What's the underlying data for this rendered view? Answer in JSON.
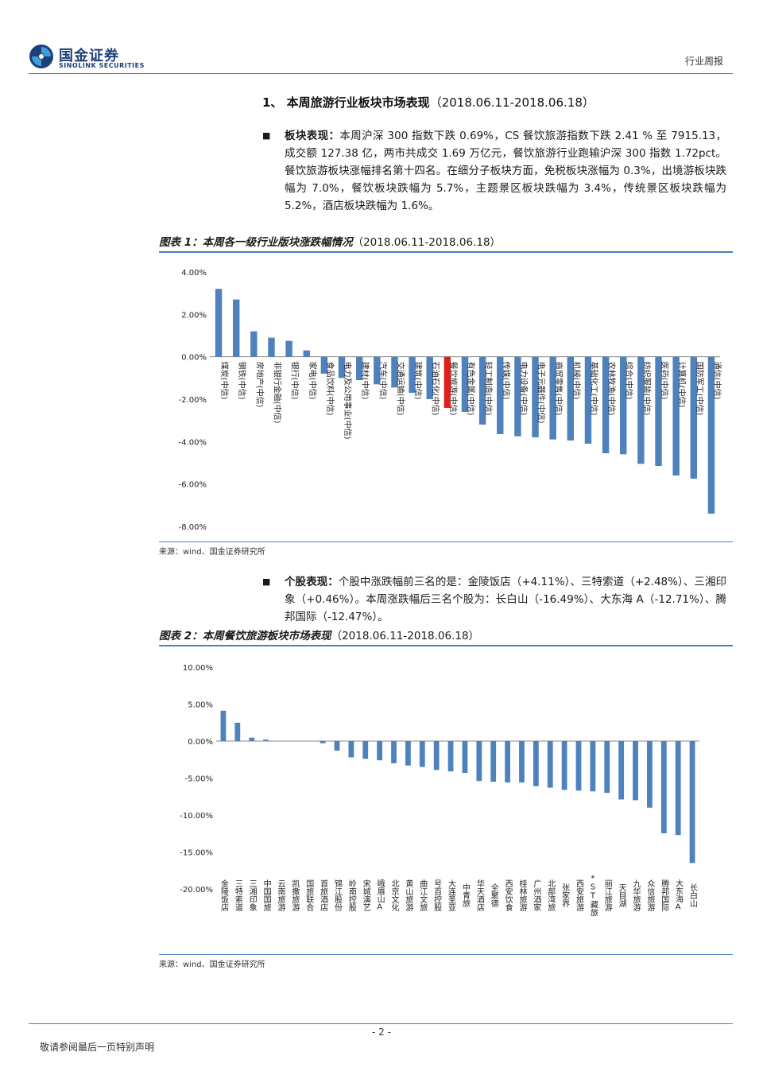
{
  "header": {
    "logo_cn": "国金证券",
    "logo_en": "SINOLINK SECURITIES",
    "report_type": "行业周报"
  },
  "section": {
    "number": "1、",
    "title": "本周旅游行业板块市场表现",
    "dates": "（2018.06.11-2018.06.18）"
  },
  "para1": {
    "label": "板块表现：",
    "text": "本周沪深 300 指数下跌 0.69%，CS 餐饮旅游指数下跌 2.41 % 至 7915.13，成交额 127.38 亿，两市共成交 1.69 万亿元，餐饮旅游行业跑输沪深 300 指数 1.72pct。餐饮旅游板块涨幅排名第十四名。在细分子板块方面，免税板块涨幅为 0.3%，出境游板块跌幅为 7.0%，餐饮板块跌幅为 5.7%，主题景区板块跌幅为 3.4%，传统景区板块跌幅为 5.2%，酒店板块跌幅为 1.6%。"
  },
  "fig1": {
    "title": "图表 1：本周各一级行业版块涨跌幅情况",
    "dates": "（2018.06.11-2018.06.18）",
    "source": "来源：wind、国金证券研究所"
  },
  "para2": {
    "label": "个股表现：",
    "text": "个股中涨跌幅前三名的是：金陵饭店（+4.11%）、三特索道（+2.48%）、三湘印象（+0.46%）。本周涨跌幅后三名个股为：长白山（-16.49%）、大东海 A（-12.71%）、腾邦国际（-12.47%）。"
  },
  "fig2": {
    "title": "图表 2：本周餐饮旅游板块市场表现",
    "dates": "（2018.06.11-2018.06.18）",
    "source": "来源：wind、国金证券研究所"
  },
  "footer": {
    "page": "- 2 -",
    "notice": "敬请参阅最后一页特别声明"
  },
  "colors": {
    "bar": "#4f81bd",
    "highlight": "#e0201b",
    "rule": "#4a7fc1",
    "brand": "#1d3f7a"
  },
  "chart_data": [
    {
      "type": "bar",
      "ylim": [
        -8,
        4
      ],
      "yticks": [
        "4.00%",
        "2.00%",
        "0.00%",
        "-2.00%",
        "-4.00%",
        "-6.00%",
        "-8.00%"
      ],
      "ytick_values": [
        4,
        2,
        0,
        -2,
        -4,
        -6,
        -8
      ],
      "highlight_index": 13,
      "categories": [
        "煤炭(中信)",
        "钢铁(中信)",
        "房地产(中信)",
        "非银行金融(中信)",
        "银行(中信)",
        "家电(中信)",
        "食品饮料(中信)",
        "电力及公用事业(中信)",
        "建材(中信)",
        "汽车(中信)",
        "交通运输(中信)",
        "建筑(中信)",
        "石油石化(中信)",
        "餐饮旅游(中信)",
        "有色金属(中信)",
        "轻工制造(中信)",
        "传媒(中信)",
        "电力设备(中信)",
        "电子元器件(中信)",
        "商贸零售(中信)",
        "机械(中信)",
        "基础化工(中信)",
        "农林牧渔(中信)",
        "综合(中信)",
        "纺织服装(中信)",
        "医药(中信)",
        "计算机(中信)",
        "国防军工(中信)",
        "通信(中信)"
      ],
      "values": [
        3.2,
        2.7,
        1.2,
        0.9,
        0.75,
        0.3,
        -0.8,
        -1.0,
        -1.1,
        -1.3,
        -1.45,
        -1.7,
        -2.0,
        -2.41,
        -2.6,
        -3.2,
        -3.65,
        -3.75,
        -3.8,
        -3.9,
        -3.95,
        -4.1,
        -4.55,
        -4.6,
        -5.05,
        -5.15,
        -5.6,
        -5.75,
        -7.4
      ]
    },
    {
      "type": "bar",
      "ylim": [
        -20,
        10
      ],
      "yticks": [
        "10.00%",
        "5.00%",
        "0.00%",
        "-5.00%",
        "-10.00%",
        "-15.00%",
        "-20.00%"
      ],
      "ytick_values": [
        10,
        5,
        0,
        -5,
        -10,
        -15,
        -20
      ],
      "categories": [
        "金陵饭店",
        "三特索道",
        "三湘印象",
        "中国国旅",
        "云南旅游",
        "凯撒旅游",
        "国旅联合",
        "首旅酒店",
        "锦江股份",
        "岭南控股",
        "宋城演艺",
        "峨眉山A",
        "北京文化",
        "黄山旅游",
        "曲江文旅",
        "号百控股",
        "大连圣亚",
        "中青旅",
        "华天酒店",
        "全聚德",
        "西安饮食",
        "桂林旅游",
        "广州酒家",
        "北部湾旅",
        "张家界",
        "西安旅游",
        "*ST藏旅",
        "丽江旅游",
        "天目湖",
        "九华旅游",
        "众信旅游",
        "腾邦国际",
        "大东海A",
        "长白山"
      ],
      "values": [
        4.11,
        2.48,
        0.46,
        0.2,
        0.0,
        0.0,
        0.0,
        -0.3,
        -1.3,
        -2.2,
        -2.4,
        -2.6,
        -3.0,
        -3.3,
        -3.5,
        -3.9,
        -4.1,
        -4.3,
        -5.4,
        -5.5,
        -5.6,
        -5.6,
        -6.1,
        -6.3,
        -6.6,
        -6.7,
        -6.8,
        -7.0,
        -7.9,
        -8.0,
        -9.0,
        -12.47,
        -12.71,
        -16.49
      ]
    }
  ]
}
